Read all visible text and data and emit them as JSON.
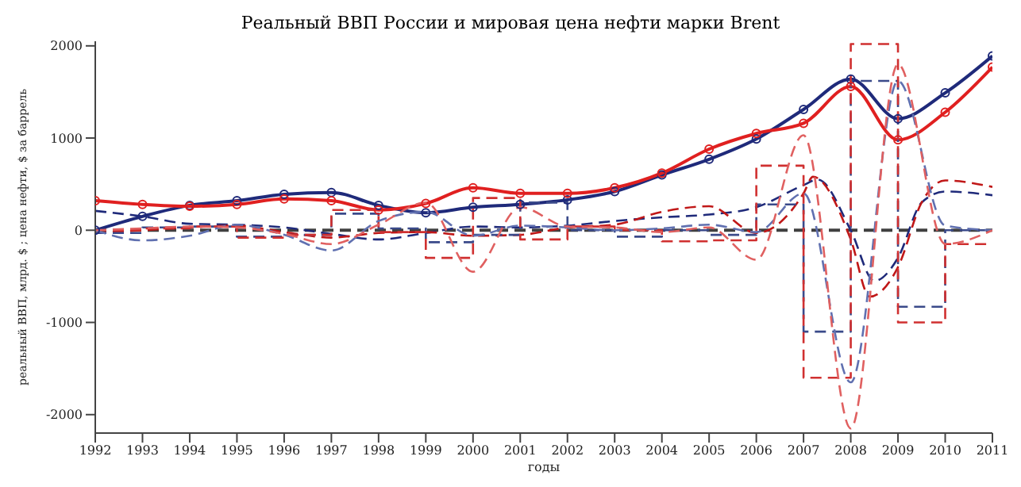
{
  "chart_data": {
    "type": "line",
    "title": "Реальный ВВП России и мировая цена нефти марки Brent",
    "xlabel": "годы",
    "ylabel": "реальный ВВП, млрд. $ ; цена нефти, $ за баррель",
    "x": [
      1992,
      1993,
      1994,
      1995,
      1996,
      1997,
      1998,
      1999,
      2000,
      2001,
      2002,
      2003,
      2004,
      2005,
      2006,
      2007,
      2008,
      2009,
      2010,
      2011
    ],
    "xlim": [
      1992,
      2011
    ],
    "xticks": [
      1992,
      1993,
      1994,
      1995,
      1996,
      1997,
      1998,
      1999,
      2000,
      2001,
      2002,
      2003,
      2004,
      2005,
      2006,
      2007,
      2008,
      2009,
      2010,
      2011
    ],
    "ylim": [
      -2200,
      2050
    ],
    "yticks": [
      -2000,
      -1000,
      0,
      1000,
      2000
    ],
    "ref_lines": [
      {
        "axis": "y",
        "value": 0,
        "color": "#404040",
        "line_style": "dashed"
      }
    ],
    "series": [
      {
        "color": "#1f2a7a",
        "marker": "circle",
        "line_style": "solid",
        "values": [
          0,
          150,
          270,
          320,
          390,
          410,
          270,
          190,
          250,
          280,
          330,
          420,
          600,
          770,
          990,
          1310,
          1640,
          1210,
          1490,
          1890
        ]
      },
      {
        "color": "#e02020",
        "marker": "circle",
        "line_style": "solid",
        "values": [
          320,
          280,
          260,
          280,
          340,
          320,
          220,
          290,
          460,
          400,
          400,
          460,
          620,
          880,
          1050,
          1160,
          1560,
          980,
          1280,
          1770
        ]
      },
      {
        "color": "#1f2a7a",
        "marker": "none",
        "line_style": "dashed",
        "x": [
          1992,
          1993,
          1994,
          1995,
          1996,
          1997,
          1998,
          1999,
          2000,
          2001,
          2002,
          2003,
          2004,
          2005,
          2006,
          2007,
          2007.3,
          2008,
          2008.5,
          2009,
          2009.5,
          2010,
          2011
        ],
        "values": [
          210,
          150,
          70,
          60,
          30,
          -40,
          -100,
          -30,
          40,
          30,
          50,
          100,
          140,
          170,
          250,
          490,
          550,
          0,
          -550,
          -300,
          300,
          420,
          380
        ]
      },
      {
        "color": "#c01818",
        "marker": "none",
        "line_style": "dashed",
        "x": [
          1992,
          1993,
          1994,
          1995,
          1996,
          1997,
          1998,
          1999,
          2000,
          2001,
          2002,
          2003,
          2004,
          2005,
          2006,
          2007,
          2007.2,
          2008,
          2008.4,
          2009,
          2009.5,
          2010,
          2011
        ],
        "values": [
          -30,
          0,
          30,
          50,
          -20,
          -80,
          -30,
          -20,
          -60,
          -50,
          30,
          60,
          200,
          260,
          -30,
          400,
          580,
          -100,
          -720,
          -400,
          300,
          540,
          470
        ]
      },
      {
        "type": "step",
        "color": "#3a4a8a",
        "marker": "none",
        "line_style": "dashed",
        "values": [
          -30,
          30,
          40,
          -70,
          -50,
          180,
          20,
          -130,
          -50,
          300,
          0,
          -70,
          0,
          -50,
          280,
          -1100,
          1620,
          -830,
          0,
          0
        ]
      },
      {
        "type": "step",
        "color": "#d03030",
        "marker": "none",
        "line_style": "dashed",
        "values": [
          0,
          20,
          40,
          -80,
          -50,
          220,
          -20,
          -300,
          350,
          -100,
          40,
          0,
          -120,
          -110,
          700,
          -1600,
          2020,
          -1000,
          -150,
          -150
        ]
      },
      {
        "color": "#6070b0",
        "marker": "none",
        "line_style": "dashed",
        "values": [
          0,
          -110,
          -60,
          60,
          -50,
          -220,
          100,
          200,
          -60,
          50,
          30,
          0,
          20,
          60,
          -20,
          400,
          -1650,
          1620,
          50,
          0
        ]
      },
      {
        "color": "#e06060",
        "marker": "none",
        "line_style": "dashed",
        "values": [
          0,
          20,
          40,
          30,
          -40,
          -150,
          60,
          300,
          -450,
          250,
          40,
          30,
          -20,
          30,
          -320,
          1030,
          -2150,
          1800,
          -150,
          0
        ]
      }
    ]
  }
}
